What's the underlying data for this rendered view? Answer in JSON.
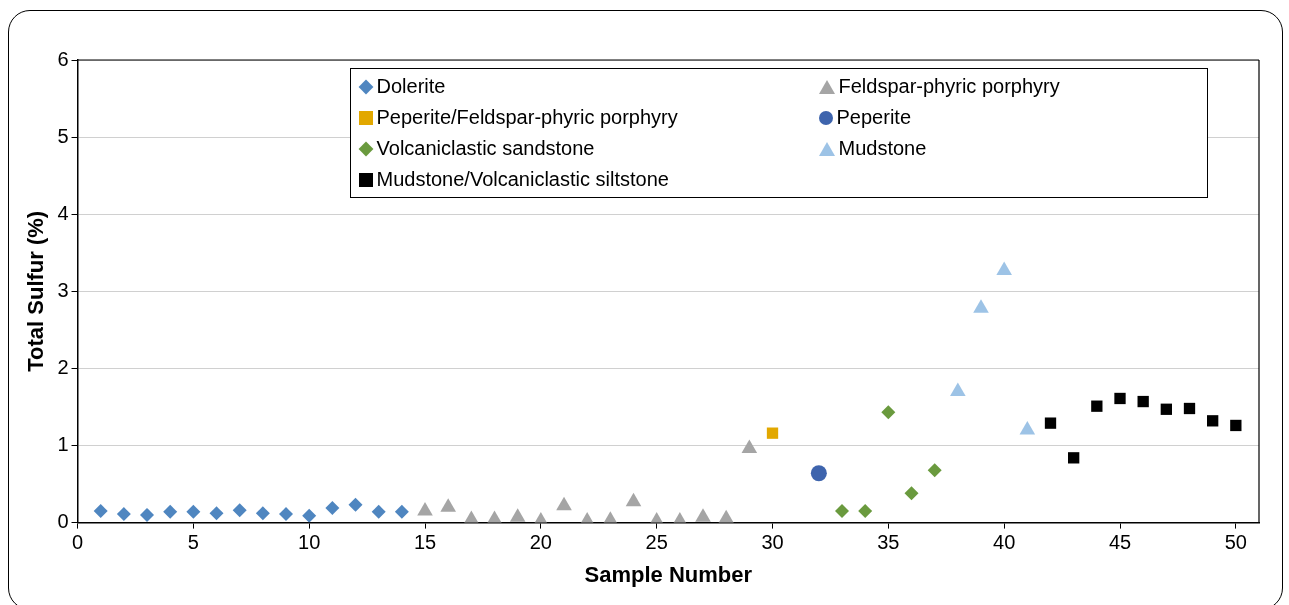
{
  "chart_data": {
    "type": "scatter",
    "xlabel": "Sample Number",
    "ylabel": "Total Sulfur (%)",
    "xlim": [
      0,
      51
    ],
    "ylim": [
      0,
      6
    ],
    "xticks": [
      0,
      5,
      10,
      15,
      20,
      25,
      30,
      35,
      40,
      45,
      50
    ],
    "yticks": [
      0,
      1,
      2,
      3,
      4,
      5,
      6
    ],
    "grid": "y",
    "legend": "top",
    "series": [
      {
        "name": "Dolerite",
        "color": "#4f86c0",
        "marker": "diamond",
        "x": [
          1,
          2,
          3,
          4,
          5,
          6,
          7,
          8,
          9,
          10,
          11,
          12,
          13,
          14
        ],
        "values": [
          0.15,
          0.11,
          0.1,
          0.14,
          0.14,
          0.12,
          0.16,
          0.12,
          0.11,
          0.09,
          0.19,
          0.23,
          0.14,
          0.14
        ]
      },
      {
        "name": "Feldspar-phyric porphyry",
        "color": "#a5a5a5",
        "marker": "triangle",
        "x": [
          15,
          16,
          17,
          18,
          19,
          20,
          21,
          22,
          23,
          24,
          25,
          26,
          27,
          28,
          29
        ],
        "values": [
          0.15,
          0.2,
          0.04,
          0.04,
          0.07,
          0.02,
          0.22,
          0.02,
          0.03,
          0.27,
          0.02,
          0.02,
          0.07,
          0.05,
          0.96
        ]
      },
      {
        "name": "Peperite/Feldspar-phyric porphyry",
        "color": "#e2a800",
        "marker": "square",
        "x": [
          30
        ],
        "values": [
          1.16
        ]
      },
      {
        "name": "Peperite",
        "color": "#3e64ad",
        "marker": "circle",
        "x": [
          32
        ],
        "values": [
          0.64
        ]
      },
      {
        "name": "Volcaniclastic sandstone",
        "color": "#6a9a3e",
        "marker": "diamond",
        "x": [
          33,
          34,
          35,
          36,
          37
        ],
        "values": [
          0.15,
          0.15,
          1.43,
          0.38,
          0.68
        ]
      },
      {
        "name": "Mudstone",
        "color": "#9dc3e6",
        "marker": "triangle",
        "x": [
          38,
          39,
          40,
          41
        ],
        "values": [
          1.7,
          2.78,
          3.27,
          1.2
        ]
      },
      {
        "name": "Mudstone/Volcaniclastic siltstone",
        "color": "#000000",
        "marker": "square",
        "x": [
          42,
          43,
          44,
          45,
          46,
          47,
          48,
          49,
          50
        ],
        "values": [
          1.29,
          0.84,
          1.51,
          1.61,
          1.57,
          1.47,
          1.48,
          1.32,
          1.26
        ]
      }
    ]
  }
}
